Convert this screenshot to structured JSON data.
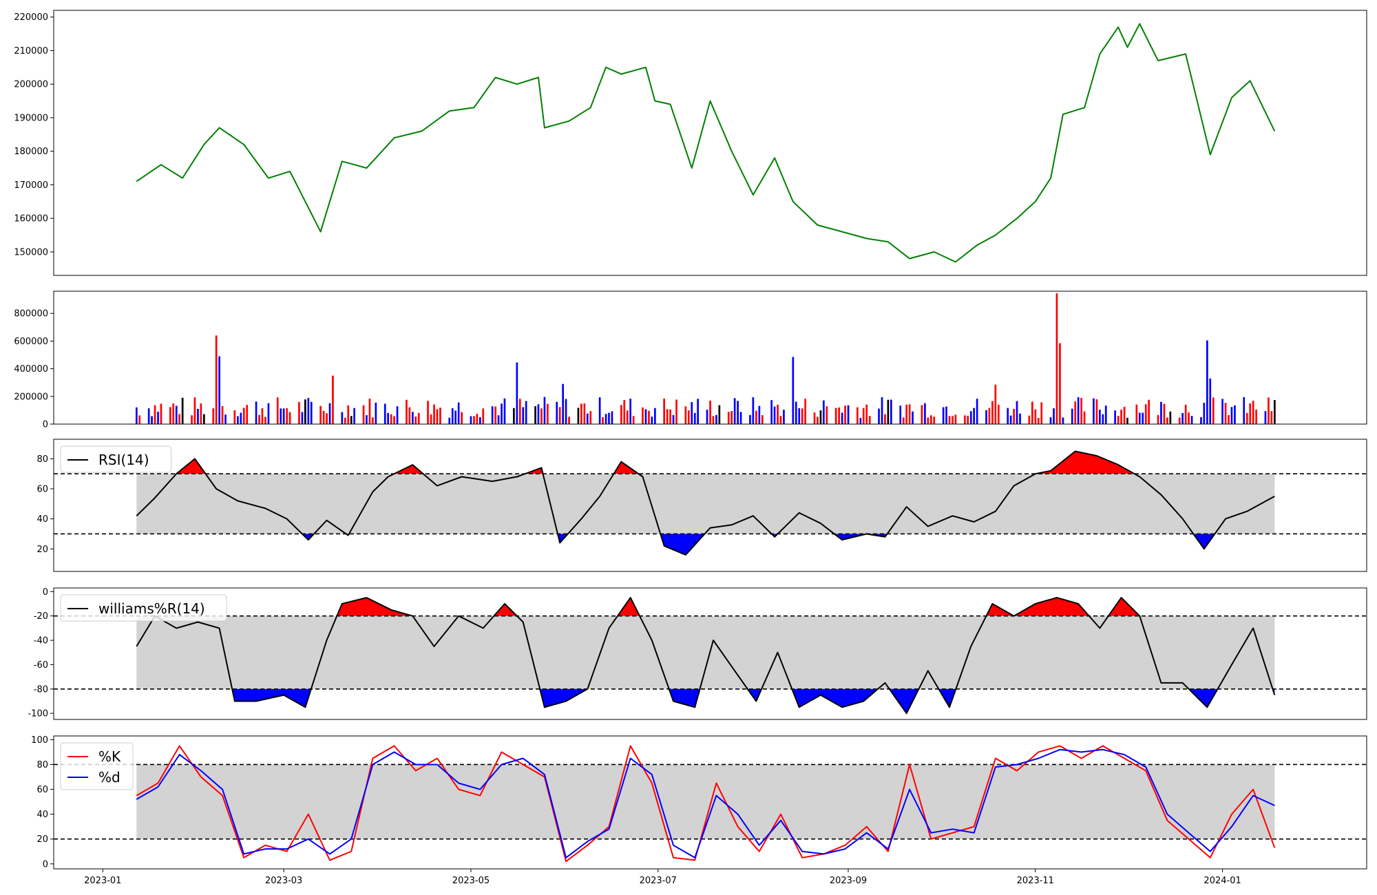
{
  "chart_data": [
    {
      "type": "line",
      "panel": "price",
      "ylim": [
        143000,
        222000
      ],
      "yticks": [
        150000,
        160000,
        170000,
        180000,
        190000,
        200000,
        210000,
        220000
      ],
      "color": "#008000",
      "series": [
        {
          "x": [
            "2023-01-12",
            "2023-01-20",
            "2023-01-27",
            "2023-02-03",
            "2023-02-08",
            "2023-02-16",
            "2023-02-24",
            "2023-03-03",
            "2023-03-13",
            "2023-03-20",
            "2023-03-28",
            "2023-04-06",
            "2023-04-15",
            "2023-04-24",
            "2023-05-02",
            "2023-05-09",
            "2023-05-16",
            "2023-05-23",
            "2023-05-25",
            "2023-06-02",
            "2023-06-09",
            "2023-06-14",
            "2023-06-19",
            "2023-06-27",
            "2023-06-30",
            "2023-07-05",
            "2023-07-12",
            "2023-07-18",
            "2023-07-25",
            "2023-08-01",
            "2023-08-08",
            "2023-08-14",
            "2023-08-22",
            "2023-08-30",
            "2023-09-07",
            "2023-09-14",
            "2023-09-21",
            "2023-09-29",
            "2023-10-06",
            "2023-10-13",
            "2023-10-19",
            "2023-10-26",
            "2023-11-01",
            "2023-11-06",
            "2023-11-10",
            "2023-11-17",
            "2023-11-22",
            "2023-11-28",
            "2023-12-01",
            "2023-12-05",
            "2023-12-11",
            "2023-12-20",
            "2023-12-28",
            "2024-01-04",
            "2024-01-10",
            "2024-01-18"
          ],
          "values": [
            171000,
            176000,
            172000,
            182000,
            187000,
            182000,
            172000,
            174000,
            156000,
            177000,
            175000,
            184000,
            186000,
            192000,
            193000,
            202000,
            200000,
            202000,
            187000,
            189000,
            193000,
            205000,
            203000,
            205000,
            195000,
            194000,
            175000,
            195000,
            180000,
            167000,
            178000,
            165000,
            158000,
            156000,
            154000,
            153000,
            148000,
            150000,
            147000,
            152000,
            155000,
            160000,
            165000,
            172000,
            191000,
            193000,
            209000,
            217000,
            211000,
            218000,
            207000,
            209000,
            179000,
            196000,
            201000,
            186000
          ]
        }
      ]
    },
    {
      "type": "bar",
      "panel": "volume",
      "ylim": [
        0,
        960000
      ],
      "yticks": [
        0,
        200000,
        400000,
        600000,
        800000
      ],
      "colors": {
        "up": "#ff0000",
        "down": "#0000ff",
        "flat": "#000000"
      },
      "spikes": [
        {
          "x": "2023-02-07",
          "value": 640000,
          "dir": "up"
        },
        {
          "x": "2023-02-08",
          "value": 490000,
          "dir": "down"
        },
        {
          "x": "2023-03-17",
          "value": 350000,
          "dir": "up"
        },
        {
          "x": "2023-05-16",
          "value": 445000,
          "dir": "down"
        },
        {
          "x": "2023-05-31",
          "value": 290000,
          "dir": "down"
        },
        {
          "x": "2023-08-14",
          "value": 485000,
          "dir": "down"
        },
        {
          "x": "2023-10-19",
          "value": 285000,
          "dir": "up"
        },
        {
          "x": "2023-11-08",
          "value": 945000,
          "dir": "up"
        },
        {
          "x": "2023-11-09",
          "value": 585000,
          "dir": "up"
        },
        {
          "x": "2023-12-27",
          "value": 605000,
          "dir": "down"
        },
        {
          "x": "2023-12-28",
          "value": 330000,
          "dir": "down"
        }
      ]
    },
    {
      "type": "line",
      "panel": "rsi",
      "ylim": [
        5,
        93
      ],
      "yticks": [
        20,
        40,
        60,
        80
      ],
      "bands": [
        30,
        70
      ],
      "legend": [
        "RSI(14)"
      ],
      "series": [
        {
          "name": "RSI(14)",
          "x": [
            "2023-01-12",
            "2023-01-18",
            "2023-01-25",
            "2023-01-31",
            "2023-02-07",
            "2023-02-14",
            "2023-02-23",
            "2023-03-02",
            "2023-03-09",
            "2023-03-15",
            "2023-03-22",
            "2023-03-30",
            "2023-04-04",
            "2023-04-12",
            "2023-04-20",
            "2023-04-28",
            "2023-05-08",
            "2023-05-16",
            "2023-05-24",
            "2023-05-30",
            "2023-06-06",
            "2023-06-12",
            "2023-06-19",
            "2023-06-26",
            "2023-07-03",
            "2023-07-10",
            "2023-07-18",
            "2023-07-25",
            "2023-08-01",
            "2023-08-08",
            "2023-08-16",
            "2023-08-23",
            "2023-08-30",
            "2023-09-07",
            "2023-09-13",
            "2023-09-20",
            "2023-09-27",
            "2023-10-05",
            "2023-10-12",
            "2023-10-19",
            "2023-10-25",
            "2023-11-01",
            "2023-11-06",
            "2023-11-14",
            "2023-11-21",
            "2023-11-28",
            "2023-12-05",
            "2023-12-12",
            "2023-12-19",
            "2023-12-26",
            "2024-01-02",
            "2024-01-09",
            "2024-01-18"
          ],
          "values": [
            42,
            54,
            70,
            80,
            60,
            52,
            47,
            40,
            26,
            39,
            29,
            58,
            68,
            76,
            62,
            68,
            65,
            68,
            74,
            24,
            40,
            55,
            78,
            68,
            22,
            16,
            34,
            36,
            42,
            28,
            44,
            37,
            26,
            30,
            28,
            48,
            35,
            42,
            38,
            45,
            62,
            70,
            72,
            85,
            82,
            76,
            68,
            56,
            40,
            20,
            40,
            45,
            55
          ]
        }
      ]
    },
    {
      "type": "line",
      "panel": "williams",
      "ylim": [
        -105,
        3
      ],
      "yticks": [
        0,
        -20,
        -40,
        -60,
        -80,
        -100
      ],
      "bands": [
        -20,
        -80
      ],
      "legend": [
        "williams%R(14)"
      ],
      "series": [
        {
          "name": "williams%R(14)",
          "x": [
            "2023-01-12",
            "2023-01-18",
            "2023-01-25",
            "2023-02-01",
            "2023-02-08",
            "2023-02-13",
            "2023-02-20",
            "2023-03-01",
            "2023-03-08",
            "2023-03-15",
            "2023-03-20",
            "2023-03-28",
            "2023-04-05",
            "2023-04-12",
            "2023-04-19",
            "2023-04-27",
            "2023-05-05",
            "2023-05-12",
            "2023-05-18",
            "2023-05-25",
            "2023-06-01",
            "2023-06-08",
            "2023-06-15",
            "2023-06-22",
            "2023-06-29",
            "2023-07-06",
            "2023-07-13",
            "2023-07-19",
            "2023-07-26",
            "2023-08-02",
            "2023-08-09",
            "2023-08-16",
            "2023-08-23",
            "2023-08-30",
            "2023-09-06",
            "2023-09-13",
            "2023-09-20",
            "2023-09-27",
            "2023-10-04",
            "2023-10-11",
            "2023-10-18",
            "2023-10-25",
            "2023-11-01",
            "2023-11-08",
            "2023-11-15",
            "2023-11-22",
            "2023-11-29",
            "2023-12-05",
            "2023-12-12",
            "2023-12-19",
            "2023-12-27",
            "2024-01-04",
            "2024-01-11",
            "2024-01-18"
          ],
          "values": [
            -45,
            -20,
            -30,
            -25,
            -30,
            -90,
            -90,
            -85,
            -95,
            -40,
            -10,
            -5,
            -15,
            -20,
            -45,
            -20,
            -30,
            -10,
            -25,
            -95,
            -90,
            -80,
            -30,
            -5,
            -40,
            -90,
            -95,
            -40,
            -65,
            -90,
            -50,
            -95,
            -85,
            -95,
            -90,
            -75,
            -100,
            -65,
            -95,
            -45,
            -10,
            -20,
            -10,
            -5,
            -10,
            -30,
            -5,
            -20,
            -75,
            -75,
            -95,
            -60,
            -30,
            -85
          ]
        }
      ]
    },
    {
      "type": "line",
      "panel": "stochastic",
      "ylim": [
        -4,
        103
      ],
      "yticks": [
        0,
        20,
        40,
        60,
        80,
        100
      ],
      "bands": [
        20,
        80
      ],
      "legend": [
        "%K",
        "%d"
      ],
      "series": [
        {
          "name": "%K",
          "color": "#ff0000",
          "x": [
            "2023-01-12",
            "2023-01-19",
            "2023-01-26",
            "2023-02-02",
            "2023-02-09",
            "2023-02-16",
            "2023-02-23",
            "2023-03-02",
            "2023-03-09",
            "2023-03-16",
            "2023-03-23",
            "2023-03-30",
            "2023-04-06",
            "2023-04-13",
            "2023-04-20",
            "2023-04-27",
            "2023-05-04",
            "2023-05-11",
            "2023-05-18",
            "2023-05-25",
            "2023-06-01",
            "2023-06-08",
            "2023-06-15",
            "2023-06-22",
            "2023-06-29",
            "2023-07-06",
            "2023-07-13",
            "2023-07-20",
            "2023-07-27",
            "2023-08-03",
            "2023-08-10",
            "2023-08-17",
            "2023-08-24",
            "2023-08-31",
            "2023-09-07",
            "2023-09-14",
            "2023-09-21",
            "2023-09-28",
            "2023-10-05",
            "2023-10-12",
            "2023-10-19",
            "2023-10-26",
            "2023-11-02",
            "2023-11-09",
            "2023-11-16",
            "2023-11-23",
            "2023-11-30",
            "2023-12-07",
            "2023-12-14",
            "2023-12-21",
            "2023-12-28",
            "2024-01-04",
            "2024-01-11",
            "2024-01-18"
          ],
          "values": [
            55,
            65,
            95,
            70,
            55,
            5,
            15,
            10,
            40,
            3,
            10,
            85,
            95,
            75,
            85,
            60,
            55,
            90,
            80,
            70,
            2,
            15,
            30,
            95,
            65,
            5,
            3,
            65,
            30,
            10,
            40,
            5,
            8,
            15,
            30,
            10,
            80,
            20,
            25,
            30,
            85,
            75,
            90,
            95,
            85,
            95,
            85,
            75,
            35,
            20,
            5,
            40,
            60,
            13
          ]
        },
        {
          "name": "%d",
          "color": "#0000ff",
          "x": [
            "2023-01-12",
            "2023-01-19",
            "2023-01-26",
            "2023-02-02",
            "2023-02-09",
            "2023-02-16",
            "2023-02-23",
            "2023-03-02",
            "2023-03-09",
            "2023-03-16",
            "2023-03-23",
            "2023-03-30",
            "2023-04-06",
            "2023-04-13",
            "2023-04-20",
            "2023-04-27",
            "2023-05-04",
            "2023-05-11",
            "2023-05-18",
            "2023-05-25",
            "2023-06-01",
            "2023-06-08",
            "2023-06-15",
            "2023-06-22",
            "2023-06-29",
            "2023-07-06",
            "2023-07-13",
            "2023-07-20",
            "2023-07-27",
            "2023-08-03",
            "2023-08-10",
            "2023-08-17",
            "2023-08-24",
            "2023-08-31",
            "2023-09-07",
            "2023-09-14",
            "2023-09-21",
            "2023-09-28",
            "2023-10-05",
            "2023-10-12",
            "2023-10-19",
            "2023-10-26",
            "2023-11-02",
            "2023-11-09",
            "2023-11-16",
            "2023-11-23",
            "2023-11-30",
            "2023-12-07",
            "2023-12-14",
            "2023-12-21",
            "2023-12-28",
            "2024-01-04",
            "2024-01-11",
            "2024-01-18"
          ],
          "values": [
            52,
            62,
            88,
            75,
            60,
            8,
            12,
            12,
            20,
            8,
            20,
            80,
            90,
            80,
            80,
            65,
            60,
            80,
            85,
            72,
            5,
            18,
            28,
            85,
            72,
            15,
            5,
            55,
            40,
            15,
            35,
            10,
            8,
            12,
            25,
            12,
            60,
            25,
            28,
            25,
            78,
            80,
            85,
            92,
            90,
            92,
            88,
            78,
            40,
            25,
            10,
            30,
            55,
            47
          ]
        }
      ]
    }
  ],
  "x_axis": {
    "ticks": [
      "2023-01",
      "2023-03",
      "2023-05",
      "2023-07",
      "2023-09",
      "2023-11",
      "2024-01"
    ],
    "range": [
      "2022-12-16",
      "2024-02-17"
    ],
    "data_range": [
      "2023-01-12",
      "2024-01-18"
    ]
  }
}
